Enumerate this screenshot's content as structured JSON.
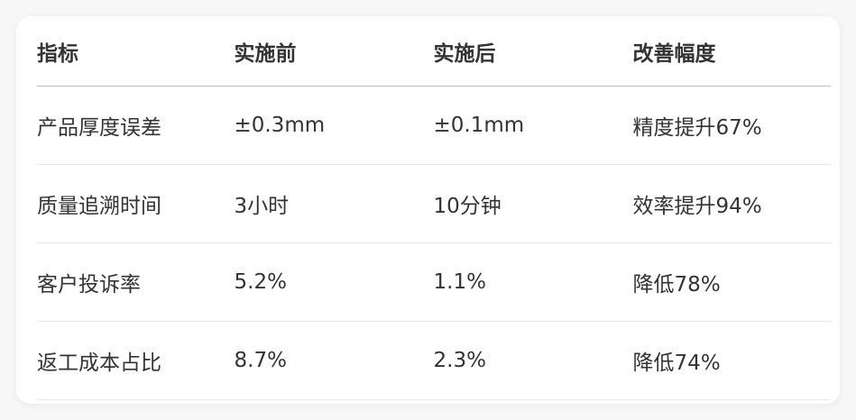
{
  "table": {
    "headers": [
      "指标",
      "实施前",
      "实施后",
      "改善幅度"
    ],
    "rows": [
      [
        "产品厚度误差",
        "±0.3mm",
        "±0.1mm",
        "精度提升67%"
      ],
      [
        "质量追溯时间",
        "3小时",
        "10分钟",
        "效率提升94%"
      ],
      [
        "客户投诉率",
        "5.2%",
        "1.1%",
        "降低78%"
      ],
      [
        "返工成本占比",
        "8.7%",
        "2.3%",
        "降低74%"
      ]
    ]
  }
}
